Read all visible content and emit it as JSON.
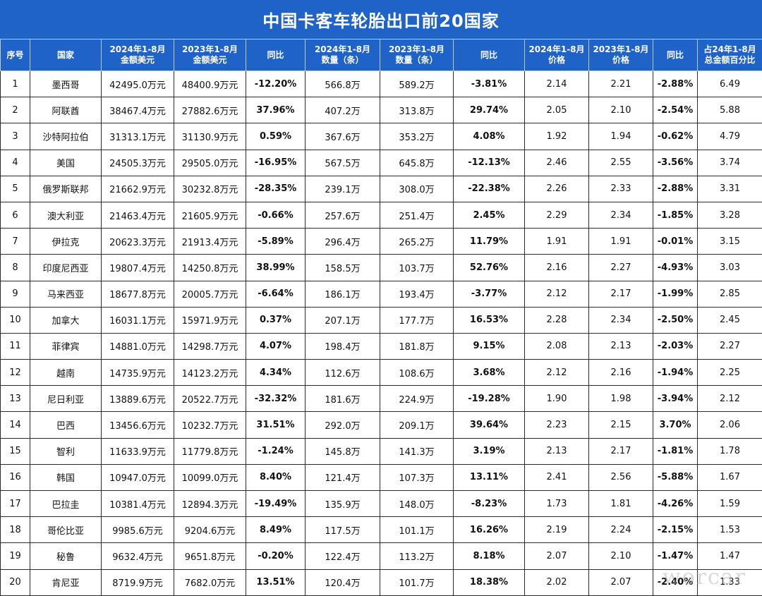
{
  "title": "中国卡客车轮胎出口前20国家",
  "headers": [
    [
      "序号"
    ],
    [
      "国家"
    ],
    [
      "2024年1-8月",
      "金额美元"
    ],
    [
      "2023年1-8月",
      "金额美元"
    ],
    [
      "同比"
    ],
    [
      "2024年1-8月",
      "数量（条）"
    ],
    [
      "2023年1-8月",
      "数量（条）"
    ],
    [
      "同比"
    ],
    [
      "2024年1-8月",
      "价格"
    ],
    [
      "2023年1-8月",
      "价格"
    ],
    [
      "同比"
    ],
    [
      "占24年1-8月",
      "总金额百分比"
    ]
  ],
  "rows": [
    [
      "1",
      "墨西哥",
      "42495.0万元",
      "48400.9万元",
      "-12.20%",
      "566.8万",
      "589.2万",
      "-3.81%",
      "2.14",
      "2.21",
      "-2.88%",
      "6.49"
    ],
    [
      "2",
      "阿联酋",
      "38467.4万元",
      "27882.6万元",
      "37.96%",
      "407.2万",
      "313.8万",
      "29.74%",
      "2.05",
      "2.10",
      "-2.54%",
      "5.88"
    ],
    [
      "3",
      "沙特阿拉伯",
      "31313.1万元",
      "31130.9万元",
      "0.59%",
      "367.6万",
      "353.2万",
      "4.08%",
      "1.92",
      "1.94",
      "-0.62%",
      "4.79"
    ],
    [
      "4",
      "美国",
      "24505.3万元",
      "29505.0万元",
      "-16.95%",
      "567.5万",
      "645.8万",
      "-12.13%",
      "2.46",
      "2.55",
      "-3.56%",
      "3.74"
    ],
    [
      "5",
      "俄罗斯联邦",
      "21662.9万元",
      "30232.8万元",
      "-28.35%",
      "239.1万",
      "308.0万",
      "-22.38%",
      "2.26",
      "2.33",
      "-2.88%",
      "3.31"
    ],
    [
      "6",
      "澳大利亚",
      "21463.4万元",
      "21605.9万元",
      "-0.66%",
      "257.6万",
      "251.4万",
      "2.45%",
      "2.29",
      "2.34",
      "-1.85%",
      "3.28"
    ],
    [
      "7",
      "伊拉克",
      "20623.3万元",
      "21913.4万元",
      "-5.89%",
      "296.4万",
      "265.2万",
      "11.79%",
      "1.91",
      "1.91",
      "-0.01%",
      "3.15"
    ],
    [
      "8",
      "印度尼西亚",
      "19807.4万元",
      "14250.8万元",
      "38.99%",
      "158.5万",
      "103.7万",
      "52.76%",
      "2.16",
      "2.27",
      "-4.93%",
      "3.03"
    ],
    [
      "9",
      "马来西亚",
      "18677.8万元",
      "20005.7万元",
      "-6.64%",
      "186.1万",
      "193.4万",
      "-3.77%",
      "2.12",
      "2.17",
      "-1.99%",
      "2.85"
    ],
    [
      "10",
      "加拿大",
      "16031.1万元",
      "15971.9万元",
      "0.37%",
      "207.1万",
      "177.7万",
      "16.53%",
      "2.28",
      "2.34",
      "-2.50%",
      "2.45"
    ],
    [
      "11",
      "菲律宾",
      "14881.0万元",
      "14298.7万元",
      "4.07%",
      "198.4万",
      "181.8万",
      "9.15%",
      "2.08",
      "2.13",
      "-2.03%",
      "2.27"
    ],
    [
      "12",
      "越南",
      "14735.9万元",
      "14123.2万元",
      "4.34%",
      "112.6万",
      "108.6万",
      "3.68%",
      "2.12",
      "2.16",
      "-1.94%",
      "2.25"
    ],
    [
      "13",
      "尼日利亚",
      "13889.6万元",
      "20522.7万元",
      "-32.32%",
      "181.6万",
      "224.9万",
      "-19.28%",
      "1.90",
      "1.98",
      "-3.94%",
      "2.12"
    ],
    [
      "14",
      "巴西",
      "13456.6万元",
      "10232.7万元",
      "31.51%",
      "292.0万",
      "209.1万",
      "39.64%",
      "2.23",
      "2.15",
      "3.70%",
      "2.06"
    ],
    [
      "15",
      "智利",
      "11633.9万元",
      "11779.8万元",
      "-1.24%",
      "145.8万",
      "141.3万",
      "3.19%",
      "2.13",
      "2.17",
      "-1.81%",
      "1.78"
    ],
    [
      "16",
      "韩国",
      "10947.0万元",
      "10099.0万元",
      "8.40%",
      "121.4万",
      "107.3万",
      "13.11%",
      "2.41",
      "2.56",
      "-5.88%",
      "1.67"
    ],
    [
      "17",
      "巴拉圭",
      "10381.4万元",
      "12894.3万元",
      "-19.49%",
      "135.9万",
      "148.0万",
      "-8.23%",
      "1.73",
      "1.81",
      "-4.26%",
      "1.59"
    ],
    [
      "18",
      "哥伦比亚",
      "9985.6万元",
      "9204.6万元",
      "8.49%",
      "117.5万",
      "101.1万",
      "16.26%",
      "2.19",
      "2.24",
      "-2.15%",
      "1.53"
    ],
    [
      "19",
      "秘鲁",
      "9632.4万元",
      "9651.8万元",
      "-0.20%",
      "122.4万",
      "113.2万",
      "8.18%",
      "2.07",
      "2.10",
      "-1.47%",
      "1.47"
    ],
    [
      "20",
      "肯尼亚",
      "8719.9万元",
      "7682.0万元",
      "13.51%",
      "120.4万",
      "101.7万",
      "18.38%",
      "2.02",
      "2.07",
      "-2.40%",
      "1.33"
    ]
  ],
  "watermark": "worcar",
  "colors": {
    "header_bg": "#1f62c8",
    "header_text": "#ffffff",
    "border": "#2b2b2b"
  }
}
